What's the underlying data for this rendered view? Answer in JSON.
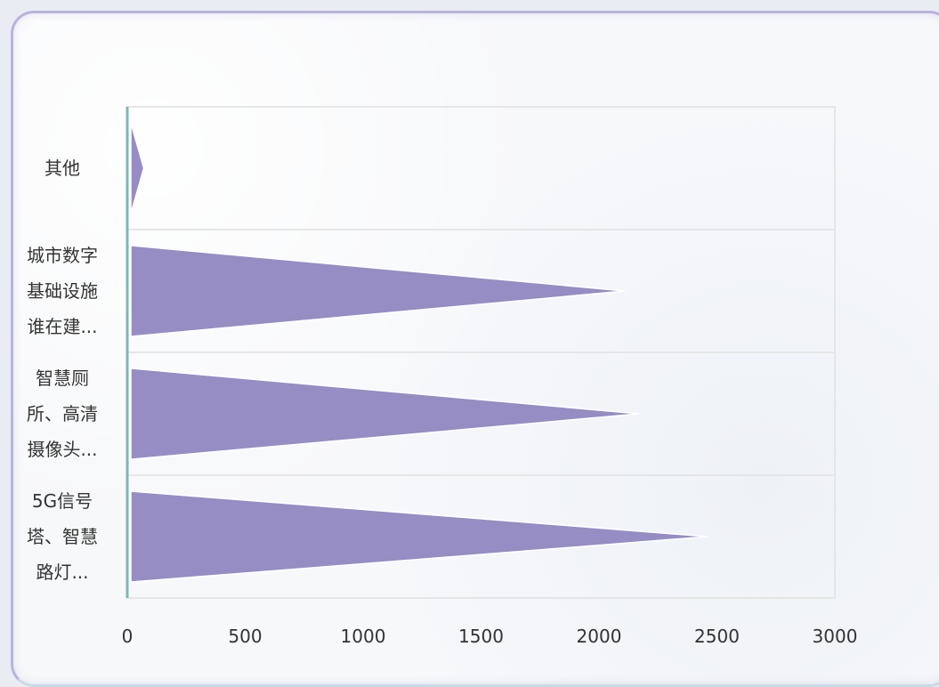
{
  "chart_data": {
    "type": "bar",
    "orientation": "horizontal",
    "bar_shape": "triangle",
    "categories": [
      [
        "5G信号",
        "塔、智慧",
        "路灯..."
      ],
      [
        "智慧厕",
        "所、高清",
        "摄像头..."
      ],
      [
        "城市数字",
        "基础设施",
        "谁在建..."
      ],
      [
        "其他"
      ]
    ],
    "values": [
      2460,
      2170,
      2110,
      70
    ],
    "xlim": [
      0,
      3000
    ],
    "xticks": [
      "0",
      "500",
      "1000",
      "1500",
      "2000",
      "2500",
      "3000"
    ],
    "grid": true,
    "colors": {
      "bar": "#958dc4",
      "bar_edge": "#ffffff",
      "axis": "#7fb7b3",
      "grid": "#e6e6e6"
    }
  }
}
